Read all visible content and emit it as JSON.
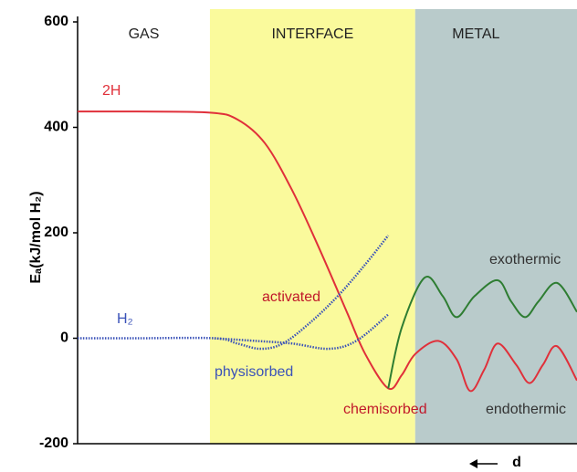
{
  "chart_data": {
    "type": "line",
    "y_label": "Eₐ(kJ/mol H₂)",
    "x_label": "d",
    "xlim": [
      0,
      100
    ],
    "ylim": [
      -200,
      600
    ],
    "yticks": [
      -200,
      0,
      200,
      400,
      600
    ],
    "regions": [
      {
        "label": "GAS",
        "start": 0,
        "end": 26.5,
        "color": "#ffffff"
      },
      {
        "label": "INTERFACE",
        "start": 26.5,
        "end": 67.6,
        "color": "#fafa9c"
      },
      {
        "label": "METAL",
        "start": 67.6,
        "end": 100,
        "color": "#b9cbcb"
      }
    ],
    "series": [
      {
        "name": "2H",
        "color": "#e0303a",
        "style": "solid",
        "x": [
          0,
          11.9,
          26.5,
          32,
          37.5,
          43,
          48.4,
          53.9,
          57.6,
          62.2,
          64.9,
          67.6,
          72.2,
          75.9,
          78.6,
          81.4,
          84.1,
          87.8,
          90.5,
          93.2,
          96,
          100
        ],
        "values": [
          430,
          430,
          428,
          415,
          370,
          280,
          170,
          50,
          -30,
          -95,
          -70,
          -30,
          -5,
          -40,
          -100,
          -60,
          -10,
          -50,
          -85,
          -50,
          -15,
          -80
        ]
      },
      {
        "color": "#2e7d32",
        "style": "solid",
        "x": [
          62.2,
          64.9,
          69.5,
          73.1,
          75.9,
          79.5,
          84.1,
          86.8,
          89.6,
          92.3,
          96,
          100
        ],
        "values": [
          -95,
          20,
          115,
          80,
          40,
          80,
          110,
          70,
          40,
          70,
          105,
          50
        ]
      },
      {
        "name": "H₂",
        "color": "#3a52b8",
        "style": "dotted",
        "x": [
          0,
          11.9,
          27.4,
          32,
          36.6,
          41.1,
          46.6,
          52.1,
          57.6,
          62.2
        ],
        "values": [
          0,
          0,
          0,
          -10,
          -20,
          -10,
          30,
          80,
          140,
          195
        ]
      },
      {
        "color": "#3a52b8",
        "style": "dotted",
        "x": [
          27.4,
          35.6,
          43,
          50.3,
          55.8,
          62.2
        ],
        "values": [
          0,
          -5,
          -10,
          -20,
          -5,
          45
        ]
      }
    ],
    "annotations": [
      {
        "text": "activated",
        "color": "#c0182a"
      },
      {
        "text": "physisorbed",
        "color": "#3a52b8"
      },
      {
        "text": "chemisorbed",
        "color": "#c0182a"
      },
      {
        "text": "exothermic",
        "color": "#333333"
      },
      {
        "text": "endothermic",
        "color": "#333333"
      }
    ]
  }
}
